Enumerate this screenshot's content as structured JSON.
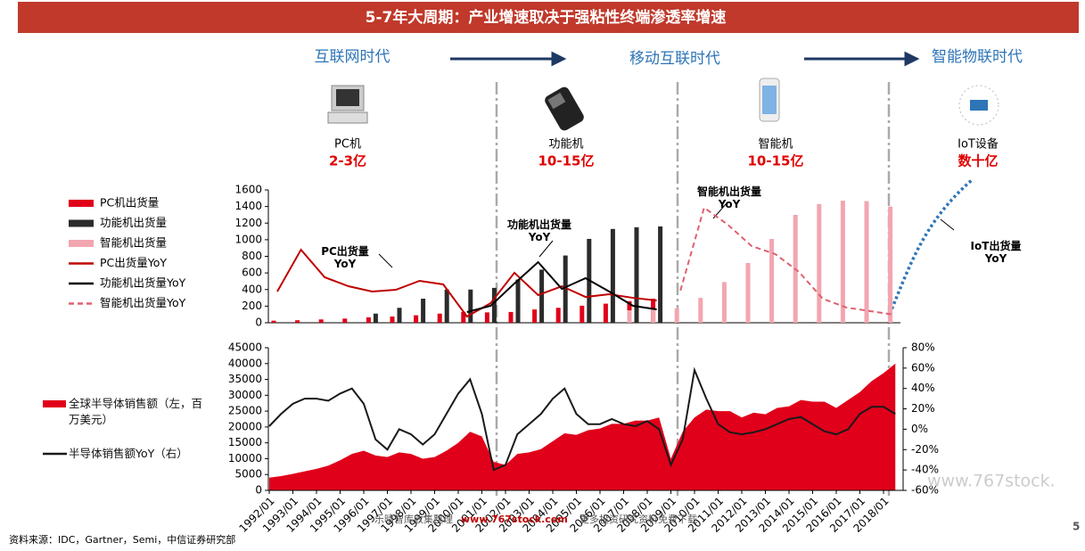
{
  "header": {
    "title": "5-7年大周期：产业增速取决于强粘性终端渗透率增速"
  },
  "eras": [
    "互联网时代",
    "移动互联时代",
    "智能物联时代"
  ],
  "devices": [
    {
      "name": "PC机",
      "amount": "2-3亿"
    },
    {
      "name": "功能机",
      "amount": "10-15亿"
    },
    {
      "name": "智能机",
      "amount": "10-15亿"
    },
    {
      "name": "IoT设备",
      "amount": "数十亿"
    }
  ],
  "chart_data": [
    {
      "type": "bar",
      "ylim": [
        0,
        1600
      ],
      "yticks": [
        0,
        200,
        400,
        600,
        800,
        1000,
        1200,
        1400,
        1600
      ],
      "annotations": [
        "PC出货量YoY",
        "功能机出货量YoY",
        "智能机出货量YoY",
        "IoT出货量YoY"
      ],
      "series": [
        {
          "name": "PC机出货量",
          "color": "#e0001a",
          "kind": "bar",
          "values": [
            25,
            30,
            40,
            50,
            65,
            75,
            90,
            110,
            130,
            125,
            130,
            160,
            180,
            205,
            230,
            260,
            290,
            null,
            null,
            null,
            null,
            null,
            null,
            null,
            null,
            null,
            null
          ]
        },
        {
          "name": "功能机出货量",
          "color": "#2b2b2b",
          "kind": "bar",
          "values": [
            null,
            null,
            null,
            null,
            110,
            180,
            290,
            400,
            400,
            420,
            520,
            640,
            810,
            1010,
            1130,
            1150,
            1160,
            null,
            null,
            null,
            null,
            null,
            null,
            null,
            null,
            null,
            null
          ]
        },
        {
          "name": "智能机出货量",
          "color": "#f2a6b0",
          "kind": "bar",
          "values": [
            null,
            null,
            null,
            null,
            null,
            null,
            null,
            null,
            null,
            null,
            null,
            null,
            null,
            null,
            null,
            150,
            160,
            175,
            300,
            490,
            720,
            1010,
            1300,
            1430,
            1470,
            1465,
            1400
          ]
        },
        {
          "name": "PC出货量YoY",
          "color": "#c00000",
          "kind": "line",
          "values": [
            376,
            880,
            548,
            440,
            376,
            397,
            505,
            462,
            75,
            236,
            602,
            333,
            440,
            311,
            344,
            300,
            269,
            null,
            null,
            null,
            null,
            null,
            null,
            null,
            null,
            null,
            null
          ]
        },
        {
          "name": "功能机出货量YoY",
          "color": "#000000",
          "kind": "line",
          "values": [
            null,
            null,
            null,
            null,
            null,
            null,
            null,
            null,
            129,
            204,
            473,
            730,
            408,
            537,
            376,
            204,
            161,
            null,
            null,
            null,
            null,
            null,
            null,
            null,
            null,
            null,
            null
          ]
        },
        {
          "name": "智能机出货量YoY",
          "color": "#e06070",
          "kind": "dashed",
          "values": [
            null,
            null,
            null,
            null,
            null,
            null,
            null,
            null,
            null,
            null,
            null,
            null,
            null,
            null,
            null,
            null,
            null,
            387,
            1386,
            1181,
            924,
            827,
            612,
            290,
            183,
            140,
            97
          ]
        }
      ]
    },
    {
      "type": "area",
      "ylim": [
        0,
        45000
      ],
      "yticks": [
        0,
        5000,
        10000,
        15000,
        20000,
        25000,
        30000,
        35000,
        40000,
        45000
      ],
      "y2lim": [
        -60,
        80
      ],
      "y2ticks": [
        {
          "value": -60,
          "label": "-60%"
        },
        {
          "value": -40,
          "label": "-40%"
        },
        {
          "value": -20,
          "label": "-20%"
        },
        {
          "value": 0,
          "label": "0%"
        },
        {
          "value": 20,
          "label": "20%"
        },
        {
          "value": 40,
          "label": "40%"
        },
        {
          "value": 60,
          "label": "60%"
        },
        {
          "value": 80,
          "label": "80%"
        }
      ],
      "x": [
        "1992/01",
        "1992/07",
        "1993/01",
        "1993/07",
        "1994/01",
        "1994/07",
        "1995/01",
        "1995/07",
        "1996/01",
        "1996/07",
        "1997/01",
        "1997/07",
        "1998/01",
        "1998/07",
        "1999/01",
        "1999/07",
        "2000/01",
        "2000/07",
        "2001/01",
        "2001/07",
        "2002/01",
        "2002/07",
        "2003/01",
        "2003/07",
        "2004/01",
        "2004/07",
        "2005/01",
        "2005/07",
        "2006/01",
        "2006/07",
        "2007/01",
        "2007/07",
        "2008/01",
        "2008/07",
        "2009/01",
        "2009/07",
        "2010/01",
        "2010/07",
        "2011/01",
        "2011/07",
        "2012/01",
        "2012/07",
        "2013/01",
        "2013/07",
        "2014/01",
        "2014/07",
        "2015/01",
        "2015/07",
        "2016/01",
        "2016/07",
        "2017/01",
        "2017/07",
        "2018/01",
        "2018/07"
      ],
      "xticks": [
        "1992/01",
        "1993/01",
        "1994/01",
        "1995/01",
        "1996/01",
        "1997/01",
        "1998/01",
        "1999/01",
        "2000/01",
        "2001/01",
        "2002/01",
        "2003/01",
        "2004/01",
        "2005/01",
        "2006/01",
        "2007/01",
        "2008/01",
        "2009/01",
        "2010/01",
        "2011/01",
        "2012/01",
        "2013/01",
        "2014/01",
        "2015/01",
        "2016/01",
        "2017/01",
        "2018/01"
      ],
      "series": [
        {
          "name": "全球半导体销售额（左，百万美元）",
          "color": "#e0001a",
          "values": [
            4000,
            4500,
            5200,
            6000,
            6800,
            7800,
            9500,
            11500,
            12500,
            11000,
            10500,
            12000,
            11500,
            10000,
            10500,
            12500,
            15000,
            18500,
            17000,
            9000,
            8000,
            11500,
            12000,
            13000,
            15500,
            18000,
            17500,
            19000,
            19500,
            21000,
            21000,
            22000,
            22000,
            23000,
            10000,
            18500,
            23000,
            25500,
            25000,
            25000,
            23000,
            24500,
            24000,
            26000,
            26500,
            28500,
            28000,
            28000,
            26000,
            28500,
            31000,
            34500,
            37000,
            40000
          ]
        },
        {
          "name": "半导体销售额YoY（右）",
          "color": "#1a1a1a",
          "axis": "y2",
          "values": [
            3,
            15,
            25,
            30,
            30,
            28,
            35,
            40,
            25,
            -10,
            -20,
            0,
            -5,
            -15,
            -5,
            15,
            35,
            49,
            15,
            -40,
            -35,
            -5,
            5,
            15,
            30,
            40,
            15,
            5,
            5,
            10,
            5,
            3,
            8,
            0,
            -35,
            -10,
            58,
            30,
            5,
            -3,
            -5,
            -3,
            0,
            5,
            10,
            12,
            5,
            -2,
            -5,
            0,
            15,
            22,
            22,
            15
          ]
        }
      ]
    }
  ],
  "watermark": [
    "乐晴智库收集整理",
    "www.767stock.com",
    "更多投资研究资料免费下载",
    "www.767stock."
  ],
  "footer": {
    "source": "资料来源：IDC，Gartner，Semi，中信证券研究部",
    "page": "5"
  }
}
